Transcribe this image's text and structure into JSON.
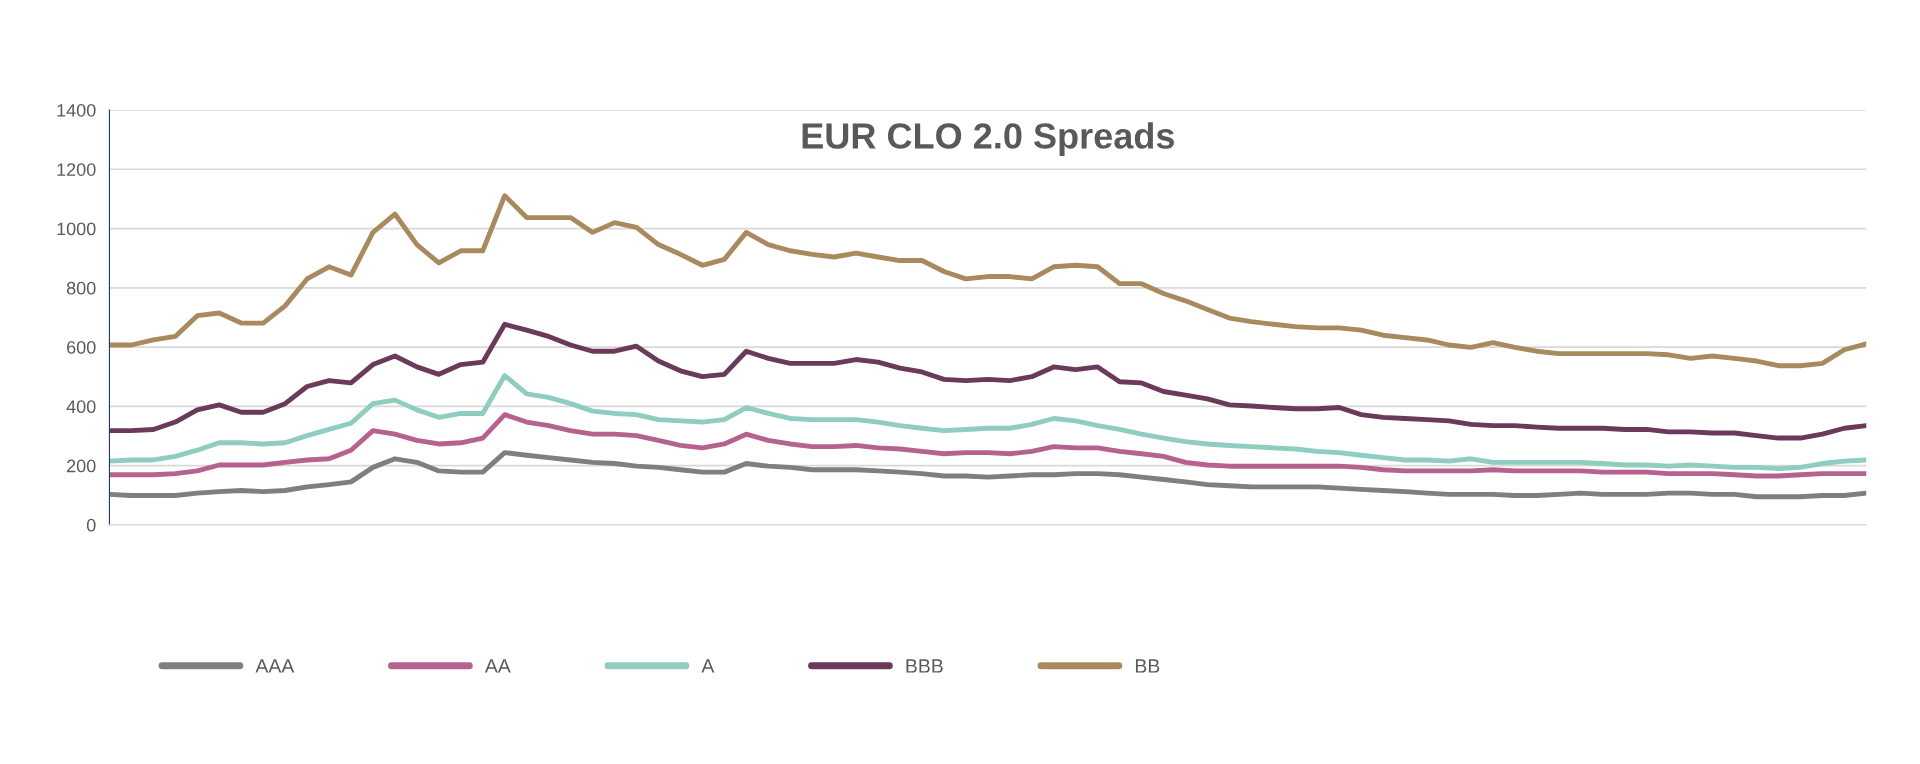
{
  "chart_data": {
    "type": "line",
    "title": "EUR CLO 2.0 Spreads",
    "categories": [
      null,
      null,
      null,
      null,
      null,
      null,
      null,
      null,
      null,
      null,
      null,
      null,
      null,
      null,
      null,
      null,
      null,
      null,
      null,
      null,
      null,
      null,
      null,
      null,
      null,
      null,
      null,
      null,
      null,
      null,
      null,
      null,
      null,
      null,
      null,
      null,
      null,
      null,
      null,
      null,
      null,
      null,
      null,
      null,
      null,
      null,
      null,
      null,
      null,
      null,
      null,
      null,
      null,
      null,
      null,
      null,
      null,
      null,
      null,
      null,
      null,
      null,
      null,
      null,
      null,
      null,
      null,
      null,
      null,
      null,
      null,
      null,
      null,
      null,
      null,
      null,
      null,
      null,
      null,
      null,
      null
    ],
    "ylim": [
      0,
      1400
    ],
    "yticks": [
      0,
      200,
      400,
      600,
      800,
      1000,
      1200,
      1400
    ],
    "grid": "y",
    "legend": "bottom",
    "marker": "none",
    "line_style": "solid",
    "series": [
      {
        "name": "AAA",
        "color": "#7f7f7f",
        "values": [
          103,
          99,
          99,
          99,
          107,
          112,
          116,
          112,
          116,
          128,
          136,
          145,
          194,
          223,
          211,
          182,
          178,
          178,
          244,
          235,
          227,
          219,
          211,
          207,
          198,
          194,
          186,
          178,
          178,
          207,
          198,
          194,
          186,
          186,
          186,
          182,
          178,
          173,
          165,
          165,
          161,
          165,
          169,
          169,
          173,
          173,
          169,
          161,
          153,
          145,
          136,
          132,
          128,
          128,
          128,
          128,
          124,
          120,
          116,
          112,
          107,
          103,
          103,
          103,
          99,
          99,
          103,
          107,
          103,
          103,
          103,
          107,
          107,
          103,
          103,
          95,
          95,
          95,
          99,
          99,
          107
        ]
      },
      {
        "name": "AA",
        "color": "#b5628f",
        "values": [
          169,
          169,
          169,
          173,
          182,
          202,
          202,
          202,
          211,
          219,
          223,
          252,
          318,
          306,
          285,
          273,
          277,
          293,
          372,
          347,
          335,
          318,
          306,
          306,
          301,
          285,
          268,
          260,
          273,
          306,
          285,
          273,
          264,
          264,
          268,
          260,
          256,
          248,
          240,
          244,
          244,
          240,
          248,
          264,
          260,
          260,
          248,
          240,
          231,
          211,
          202,
          198,
          198,
          198,
          198,
          198,
          198,
          194,
          186,
          182,
          182,
          182,
          182,
          186,
          182,
          182,
          182,
          182,
          178,
          178,
          178,
          173,
          173,
          173,
          169,
          165,
          165,
          169,
          173,
          173,
          173
        ]
      },
      {
        "name": "A",
        "color": "#8ecdbf",
        "values": [
          215,
          219,
          219,
          231,
          252,
          277,
          277,
          273,
          277,
          301,
          322,
          343,
          409,
          421,
          388,
          363,
          376,
          376,
          504,
          442,
          430,
          409,
          384,
          376,
          372,
          355,
          351,
          347,
          355,
          396,
          376,
          359,
          355,
          355,
          355,
          347,
          335,
          326,
          318,
          322,
          326,
          326,
          339,
          359,
          351,
          335,
          322,
          306,
          293,
          281,
          273,
          268,
          264,
          260,
          256,
          248,
          244,
          235,
          227,
          219,
          219,
          215,
          223,
          211,
          211,
          211,
          211,
          211,
          207,
          202,
          202,
          198,
          202,
          198,
          194,
          194,
          190,
          194,
          207,
          215,
          219
        ]
      },
      {
        "name": "BBB",
        "color": "#6b3a5a",
        "values": [
          318,
          318,
          322,
          347,
          388,
          405,
          380,
          380,
          409,
          467,
          487,
          479,
          541,
          570,
          533,
          508,
          541,
          549,
          677,
          657,
          636,
          607,
          586,
          586,
          603,
          553,
          520,
          500,
          508,
          586,
          562,
          545,
          545,
          545,
          558,
          549,
          529,
          516,
          491,
          487,
          491,
          487,
          500,
          533,
          524,
          533,
          483,
          479,
          450,
          438,
          425,
          405,
          401,
          396,
          392,
          392,
          396,
          372,
          363,
          359,
          355,
          351,
          339,
          335,
          335,
          330,
          326,
          326,
          326,
          322,
          322,
          314,
          314,
          310,
          310,
          301,
          293,
          293,
          306,
          326,
          335
        ]
      },
      {
        "name": "BB",
        "color": "#a88a5e",
        "values": [
          607,
          607,
          624,
          636,
          706,
          715,
          681,
          681,
          739,
          830,
          871,
          843,
          987,
          1049,
          946,
          884,
          925,
          925,
          1111,
          1037,
          1037,
          1037,
          987,
          1020,
          1004,
          946,
          913,
          876,
          896,
          987,
          946,
          925,
          913,
          904,
          917,
          904,
          892,
          892,
          855,
          830,
          838,
          838,
          830,
          871,
          876,
          871,
          814,
          814,
          781,
          756,
          727,
          698,
          686,
          677,
          669,
          665,
          665,
          657,
          640,
          632,
          624,
          607,
          599,
          615,
          599,
          586,
          578,
          578,
          578,
          578,
          578,
          574,
          562,
          570,
          562,
          553,
          537,
          537,
          545,
          591,
          611
        ]
      }
    ]
  }
}
